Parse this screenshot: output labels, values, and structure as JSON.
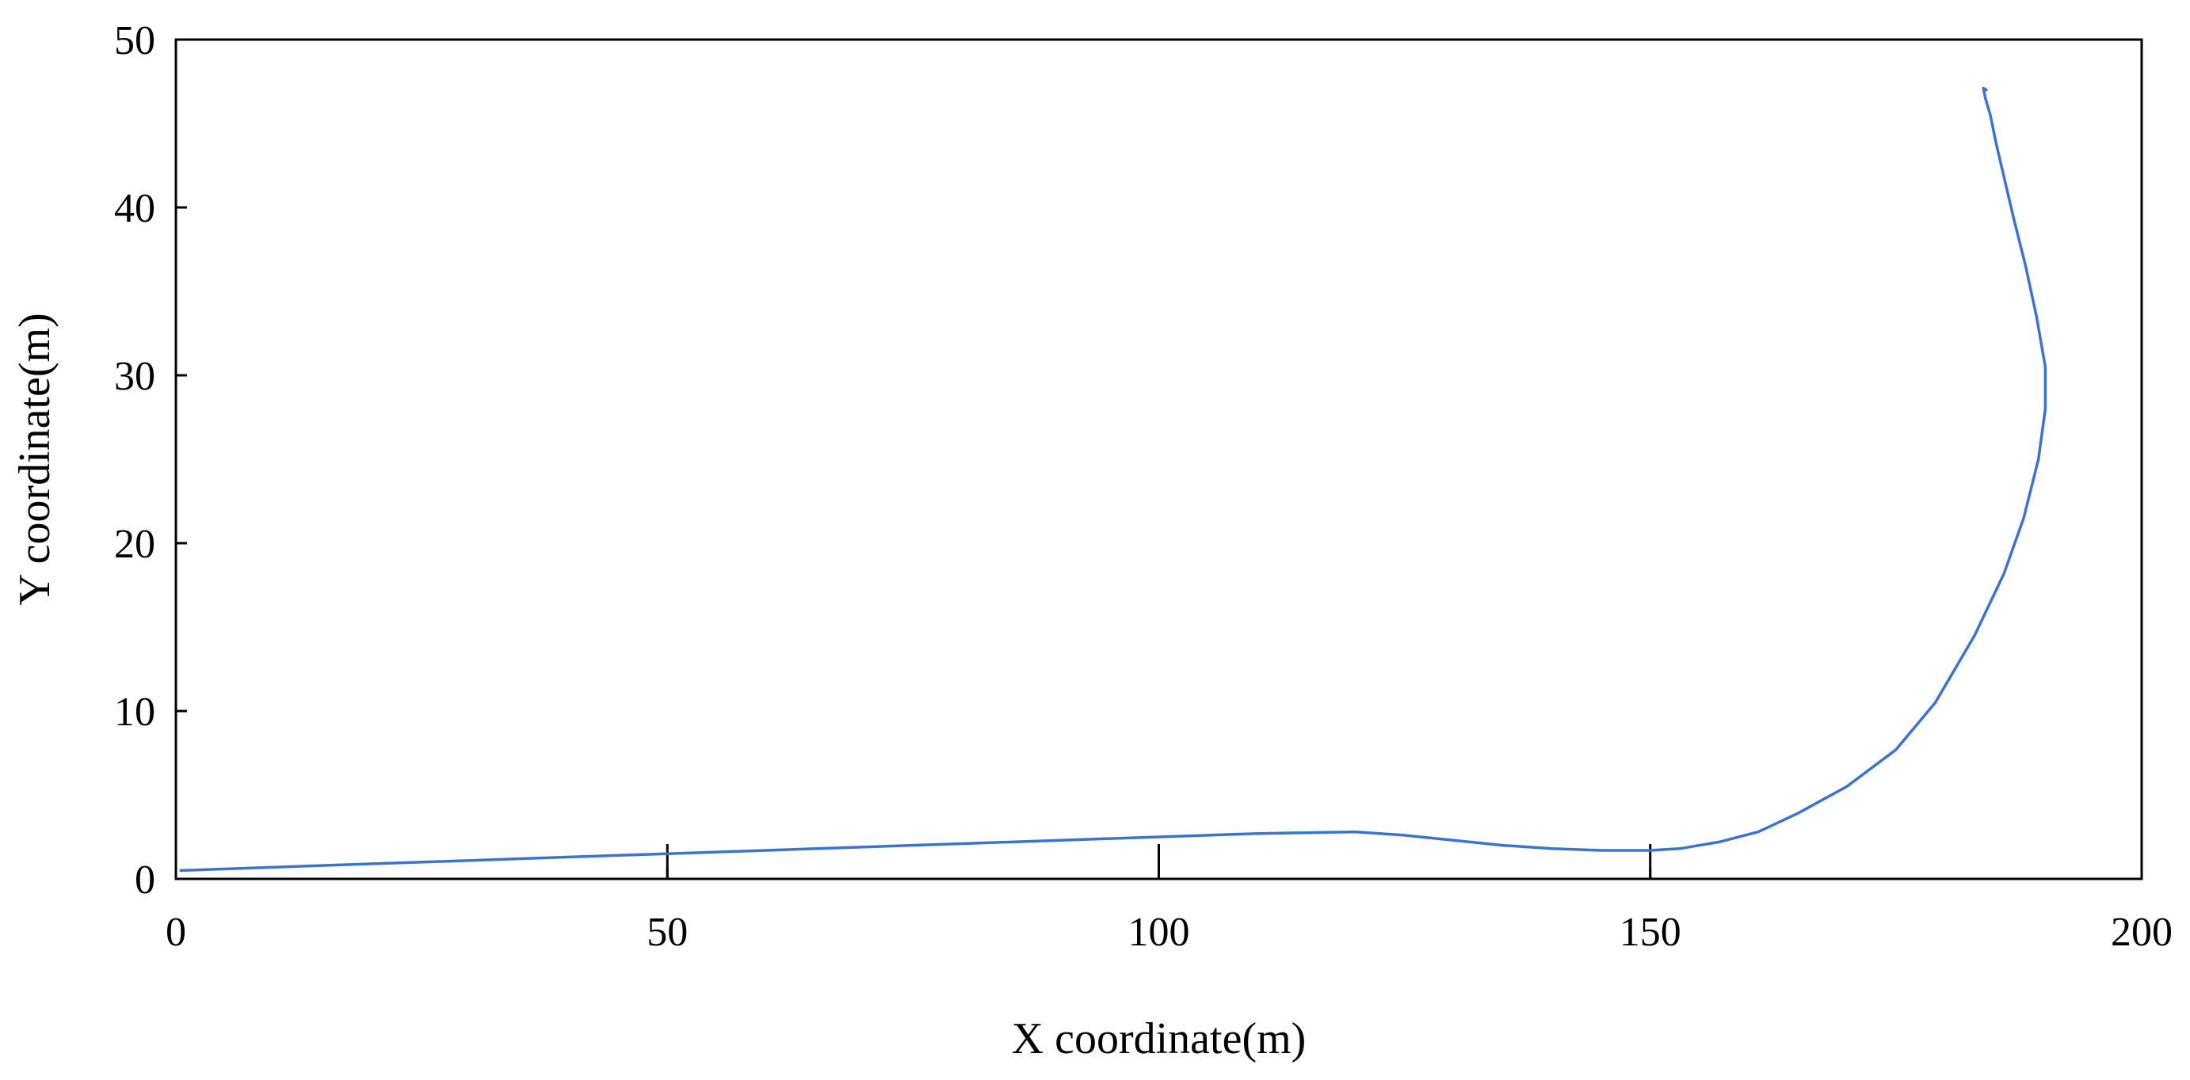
{
  "chart_data": {
    "type": "line",
    "title": "",
    "xlabel": "X coordinate(m)",
    "ylabel": "Y coordinate(m)",
    "xlim": [
      0,
      200
    ],
    "ylim": [
      0,
      50
    ],
    "xticks": [
      0,
      50,
      100,
      150,
      200
    ],
    "yticks": [
      0,
      10,
      20,
      30,
      40,
      50
    ],
    "xtick_labels": [
      "0",
      "50",
      "100",
      "150",
      "200"
    ],
    "ytick_labels": [
      "0",
      "10",
      "20",
      "30",
      "40",
      "50"
    ],
    "grid": false,
    "legend": "none",
    "line_color": "#3b73d1",
    "reference_marks_x": [
      50,
      100,
      150
    ],
    "series": [
      {
        "x": [
          0.5,
          10,
          20,
          30,
          40,
          50,
          60,
          70,
          80,
          90,
          100,
          110,
          120,
          125,
          130,
          135,
          140,
          145,
          150,
          153,
          157,
          161,
          165,
          170,
          175,
          179,
          183,
          186,
          188,
          189.5,
          190.2,
          190.2,
          189.3,
          188.2,
          187,
          186,
          185.2,
          184.6,
          184.1,
          183.9,
          184.2
        ],
        "y": [
          0.5,
          0.7,
          0.9,
          1.1,
          1.3,
          1.5,
          1.7,
          1.9,
          2.1,
          2.3,
          2.5,
          2.7,
          2.8,
          2.6,
          2.3,
          2.0,
          1.8,
          1.7,
          1.7,
          1.8,
          2.2,
          2.8,
          3.9,
          5.5,
          7.7,
          10.5,
          14.5,
          18.2,
          21.5,
          25.0,
          28.0,
          30.5,
          33.5,
          36.5,
          39.3,
          41.8,
          43.8,
          45.5,
          46.5,
          47.1,
          47.0
        ]
      }
    ]
  }
}
